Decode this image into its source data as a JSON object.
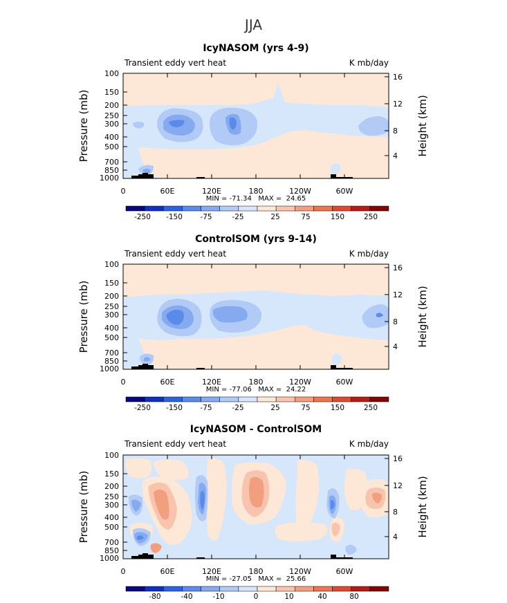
{
  "figure_title": "JJA",
  "chart_data": [
    {
      "type": "heatmap",
      "title": "IcyNASOM (yrs 4-9)",
      "subtitle_left": "Transient eddy vert heat",
      "subtitle_right": "K mb/day",
      "ylabel": "Pressure (mb)",
      "y2label": "Height (km)",
      "x_ticks": [
        "0",
        "60E",
        "120E",
        "180",
        "120W",
        "60W"
      ],
      "y_ticks": [
        "100",
        "150",
        "200",
        "250",
        "300",
        "400",
        "500",
        "700",
        "850",
        "1000"
      ],
      "y2_ticks": [
        "16",
        "12",
        "8",
        "4"
      ],
      "stats": "MIN = -71.34   MAX =  24.65",
      "colorbar_labels": [
        "-250",
        "-150",
        "-75",
        "-25",
        "25",
        "75",
        "150",
        "250"
      ],
      "colorbar_colors": [
        "#08087a",
        "#1030c0",
        "#2c64de",
        "#5b8bea",
        "#86aaf0",
        "#b2caf6",
        "#d6e6fb",
        "#fde8d8",
        "#f9c4ae",
        "#f29f80",
        "#eb7752",
        "#da4c32",
        "#b21e16",
        "#7e0808"
      ]
    },
    {
      "type": "heatmap",
      "title": "ControlSOM (yrs 9-14)",
      "subtitle_left": "Transient eddy vert heat",
      "subtitle_right": "K mb/day",
      "ylabel": "Pressure (mb)",
      "y2label": "Height (km)",
      "x_ticks": [
        "0",
        "60E",
        "120E",
        "180",
        "120W",
        "60W"
      ],
      "y_ticks": [
        "100",
        "150",
        "200",
        "250",
        "300",
        "400",
        "500",
        "700",
        "850",
        "1000"
      ],
      "y2_ticks": [
        "16",
        "12",
        "8",
        "4"
      ],
      "stats": "MIN = -77.06   MAX =  24.22",
      "colorbar_labels": [
        "-250",
        "-150",
        "-75",
        "-25",
        "25",
        "75",
        "150",
        "250"
      ],
      "colorbar_colors": [
        "#08087a",
        "#1030c0",
        "#2c64de",
        "#5b8bea",
        "#86aaf0",
        "#b2caf6",
        "#d6e6fb",
        "#fde8d8",
        "#f9c4ae",
        "#f29f80",
        "#eb7752",
        "#da4c32",
        "#b21e16",
        "#7e0808"
      ]
    },
    {
      "type": "heatmap",
      "title": "IcyNASOM - ControlSOM",
      "subtitle_left": "Transient eddy vert heat",
      "subtitle_right": "K mb/day",
      "ylabel": "Pressure (mb)",
      "y2label": "Height (km)",
      "x_ticks": [
        "0",
        "60E",
        "120E",
        "180",
        "120W",
        "60W"
      ],
      "y_ticks": [
        "100",
        "150",
        "200",
        "250",
        "300",
        "400",
        "500",
        "700",
        "850",
        "1000"
      ],
      "y2_ticks": [
        "16",
        "12",
        "8",
        "4"
      ],
      "stats": "MIN = -27.05   MAX =  25.66",
      "colorbar_labels": [
        "-80",
        "-40",
        "-10",
        "0",
        "10",
        "40",
        "80"
      ],
      "colorbar_colors": [
        "#08087a",
        "#1030c0",
        "#2c64de",
        "#5b8bea",
        "#86aaf0",
        "#b2caf6",
        "#d6e6fb",
        "#fde8d8",
        "#f9c4ae",
        "#f29f80",
        "#eb7752",
        "#da4c32",
        "#b21e16",
        "#7e0808"
      ]
    }
  ]
}
